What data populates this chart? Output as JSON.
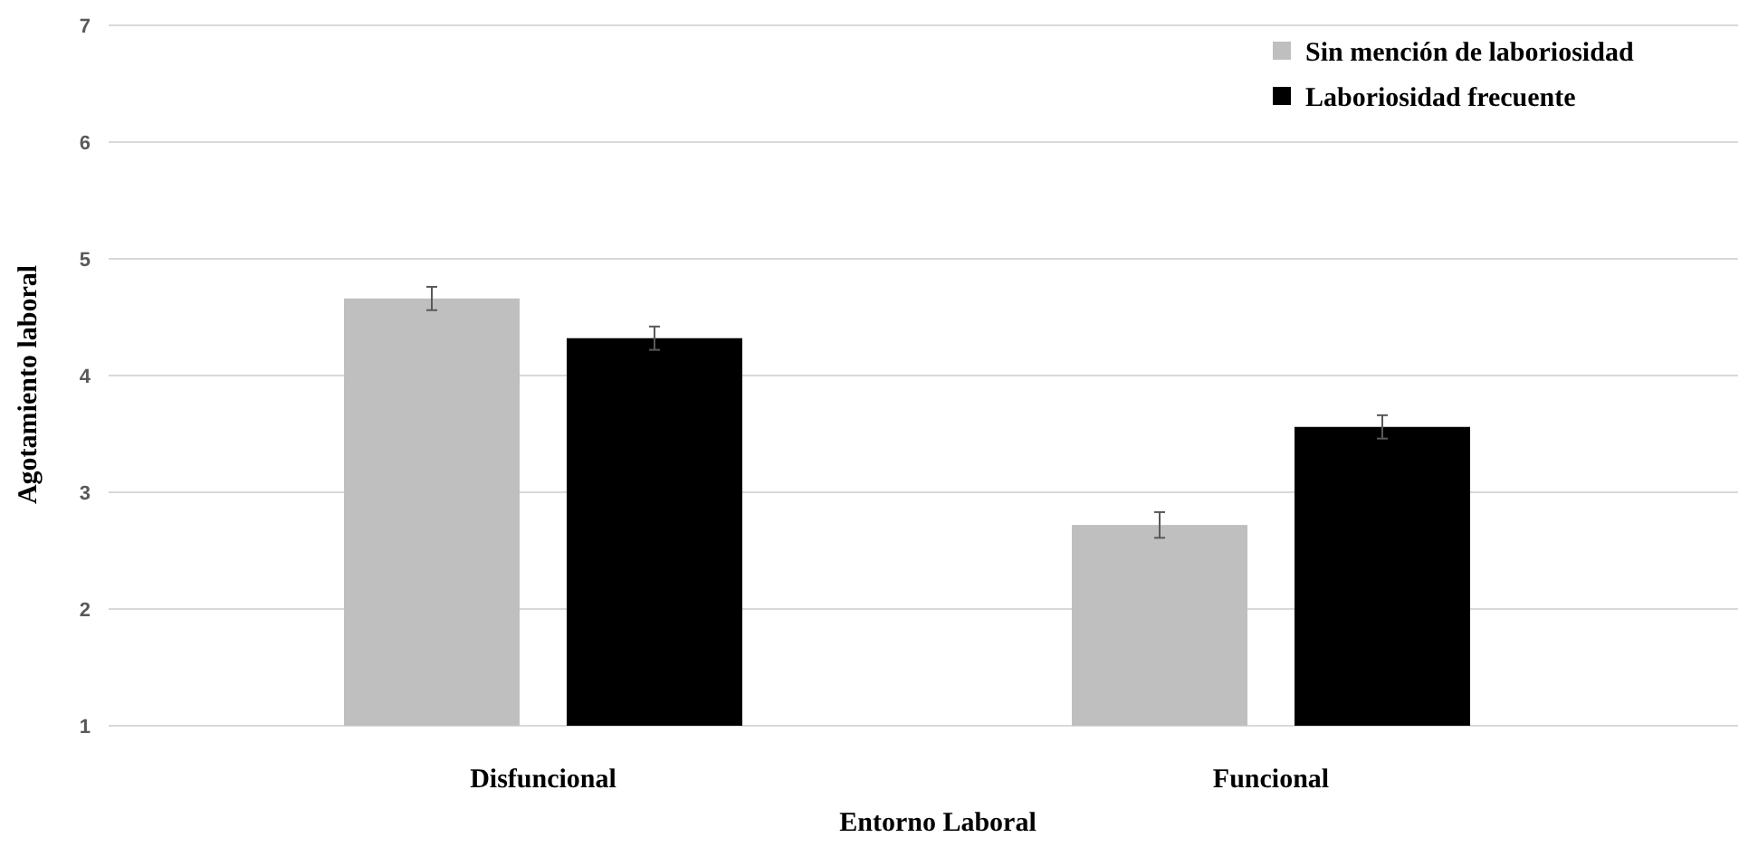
{
  "chart_data": {
    "type": "bar",
    "xlabel": "Entorno Laboral",
    "ylabel": "Agotamiento laboral",
    "categories": [
      "Disfuncional",
      "Funcional"
    ],
    "series": [
      {
        "name": "Sin mención de laboriosidad",
        "color": "#bfbfbf",
        "values": [
          4.66,
          2.72
        ],
        "errors": [
          0.1,
          0.11
        ]
      },
      {
        "name": "Laboriosidad frecuente",
        "color": "#000000",
        "values": [
          4.32,
          3.56
        ],
        "errors": [
          0.1,
          0.1
        ]
      }
    ],
    "ylim": [
      1,
      7
    ],
    "yticks": [
      1,
      2,
      3,
      4,
      5,
      6,
      7
    ],
    "grid": "y",
    "legend": "top right"
  }
}
